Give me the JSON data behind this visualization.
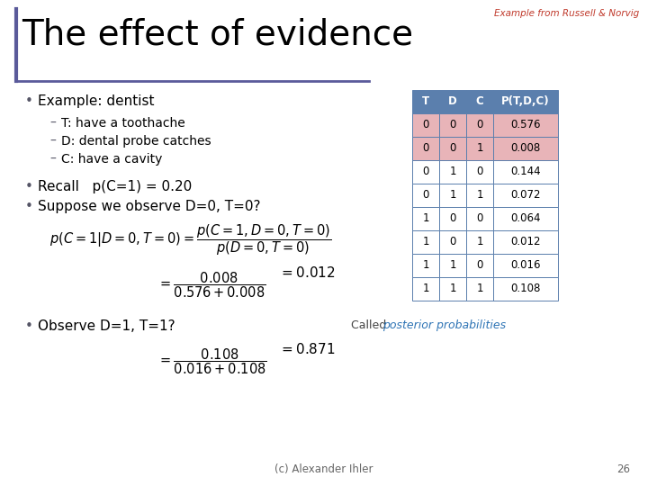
{
  "title": "The effect of evidence",
  "subtitle": "Example from Russell & Norvig",
  "background_color": "#ffffff",
  "title_color": "#000000",
  "subtitle_color": "#c0392b",
  "title_bar_color": "#5a5a9a",
  "bullet_color": "#000000",
  "table": {
    "headers": [
      "T",
      "D",
      "C",
      "P(T,D,C)"
    ],
    "rows": [
      [
        "0",
        "0",
        "0",
        "0.576"
      ],
      [
        "0",
        "0",
        "1",
        "0.008"
      ],
      [
        "0",
        "1",
        "0",
        "0.144"
      ],
      [
        "0",
        "1",
        "1",
        "0.072"
      ],
      [
        "1",
        "0",
        "0",
        "0.064"
      ],
      [
        "1",
        "0",
        "1",
        "0.012"
      ],
      [
        "1",
        "1",
        "0",
        "0.016"
      ],
      [
        "1",
        "1",
        "1",
        "0.108"
      ]
    ],
    "header_bg": "#5b7fad",
    "header_fg": "#ffffff",
    "highlight_rows": [
      0,
      1
    ],
    "highlight_bg": "#e8b4b8",
    "normal_bg": "#ffffff",
    "border_color": "#5b7fad"
  },
  "footer_text": "(c) Alexander Ihler",
  "page_number": "26"
}
